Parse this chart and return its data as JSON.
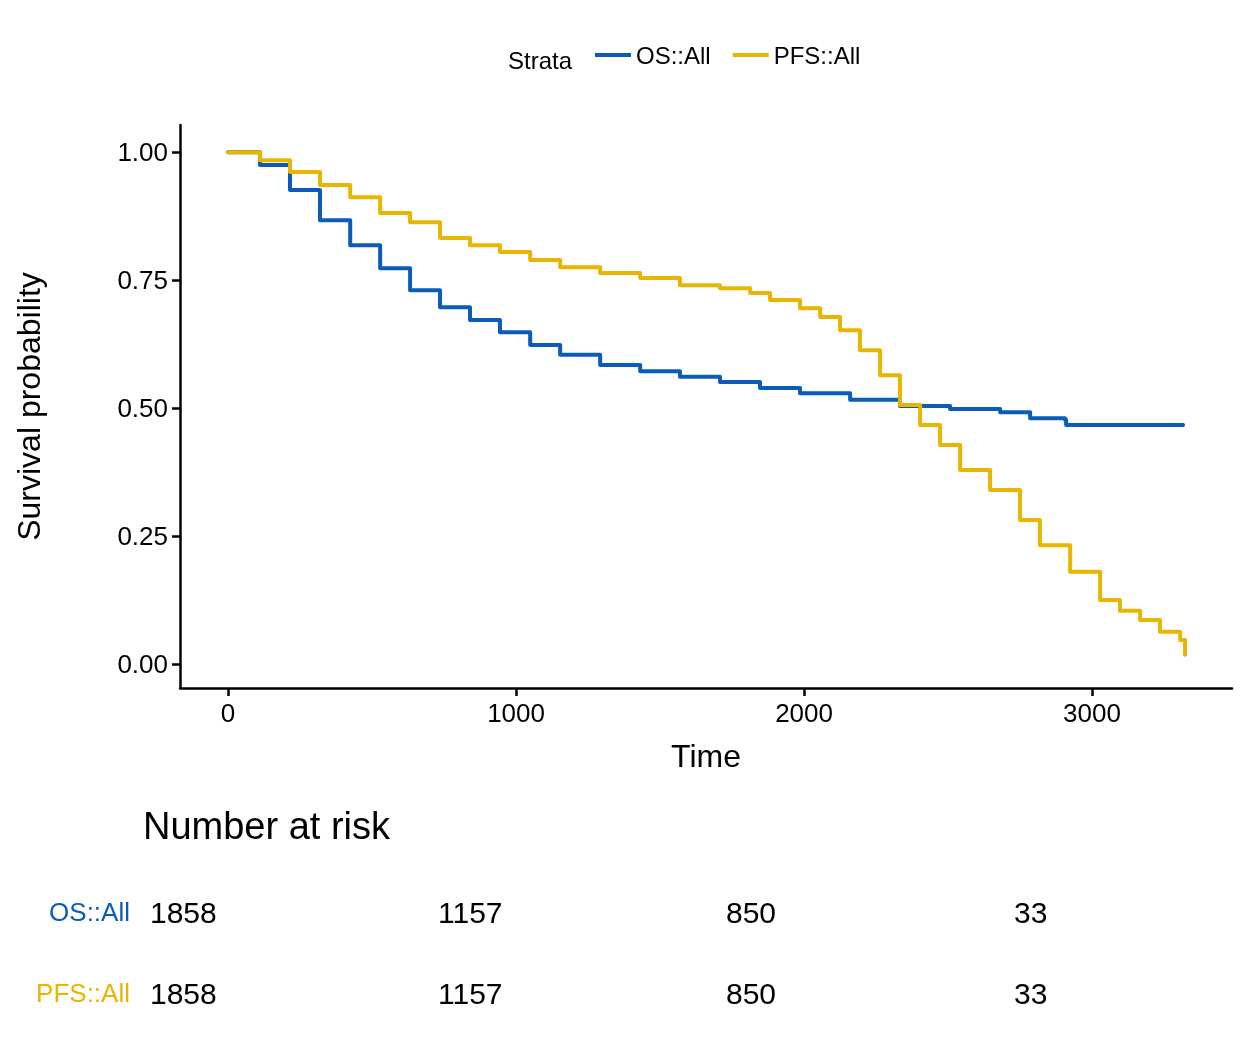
{
  "chart_data": [
    {
      "type": "step",
      "xlabel": "Time",
      "ylabel": "Survival probability",
      "legend_title": "Strata",
      "legend": "top",
      "grid": false,
      "marker": "none",
      "line_style": "solid",
      "xlim": [
        -167,
        3486
      ],
      "xticks": [
        0,
        1000,
        2000,
        3000
      ],
      "ylim": [
        -0.047,
        1.053
      ],
      "yticks": [
        {
          "value": 0,
          "label": "0.00"
        },
        {
          "value": 0.25,
          "label": "0.25"
        },
        {
          "value": 0.5,
          "label": "0.50"
        },
        {
          "value": 0.75,
          "label": "0.75"
        },
        {
          "value": 1,
          "label": "1.00"
        }
      ],
      "series": [
        {
          "name": "OS::All",
          "color": "#0b5cb8",
          "x": [
            0,
            111,
            215,
            319,
            424,
            528,
            632,
            736,
            840,
            944,
            1049,
            1153,
            1292,
            1431,
            1569,
            1708,
            1847,
            1986,
            2160,
            2333,
            2507,
            2681,
            2785,
            2906,
            2910,
            3316
          ],
          "values": [
            1.0,
            0.975,
            0.926,
            0.867,
            0.818,
            0.773,
            0.73,
            0.697,
            0.672,
            0.648,
            0.623,
            0.604,
            0.584,
            0.572,
            0.561,
            0.551,
            0.539,
            0.529,
            0.516,
            0.504,
            0.498,
            0.492,
            0.48,
            0.477,
            0.467,
            0.467
          ]
        },
        {
          "name": "PFS::All",
          "color": "#e8b500",
          "x": [
            0,
            111,
            215,
            319,
            424,
            528,
            632,
            736,
            840,
            944,
            1049,
            1153,
            1292,
            1431,
            1569,
            1708,
            1813,
            1882,
            1986,
            2056,
            2125,
            2194,
            2264,
            2333,
            2403,
            2472,
            2542,
            2646,
            2750,
            2819,
            2924,
            3028,
            3097,
            3167,
            3236,
            3306,
            3323
          ],
          "values": [
            1.0,
            0.984,
            0.961,
            0.936,
            0.912,
            0.881,
            0.863,
            0.832,
            0.818,
            0.805,
            0.789,
            0.775,
            0.764,
            0.754,
            0.74,
            0.734,
            0.725,
            0.711,
            0.695,
            0.678,
            0.652,
            0.613,
            0.564,
            0.506,
            0.467,
            0.428,
            0.379,
            0.34,
            0.281,
            0.232,
            0.18,
            0.125,
            0.104,
            0.086,
            0.063,
            0.047,
            0.018
          ]
        }
      ]
    },
    {
      "type": "other",
      "title": "Number at risk",
      "colors": [
        "#0b5cb8",
        "#e8b500"
      ],
      "annotations": [
        "OS::All",
        "1858",
        "1157",
        "850",
        "33",
        "PFS::All",
        "1858",
        "1157",
        "850",
        "33"
      ]
    }
  ]
}
